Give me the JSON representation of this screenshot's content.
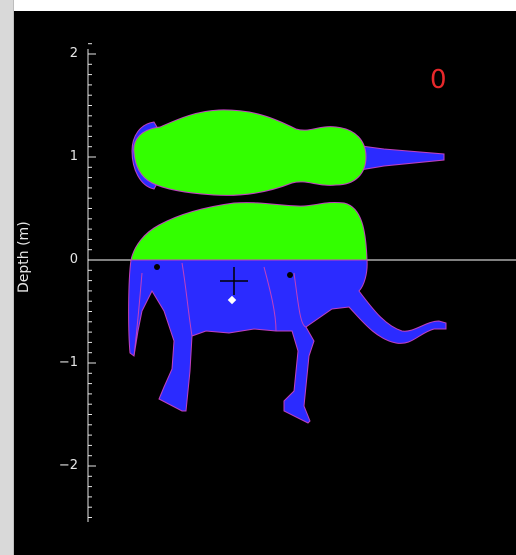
{
  "plot": {
    "y_axis": {
      "label": "Depth (m)",
      "ticks": [
        {
          "value": 2,
          "label": "2"
        },
        {
          "value": 1,
          "label": "1"
        },
        {
          "value": 0,
          "label": "0"
        },
        {
          "value": -1,
          "label": "−1"
        },
        {
          "value": -2,
          "label": "−2"
        }
      ]
    },
    "counter": "0",
    "colors": {
      "background": "#000000",
      "above_water": "#33ff00",
      "below_water": "#2b2bff",
      "outline": "#c040c0",
      "counter": "#e8282b",
      "axis": "#e6e6e6",
      "waterline": "#ffffff"
    }
  }
}
